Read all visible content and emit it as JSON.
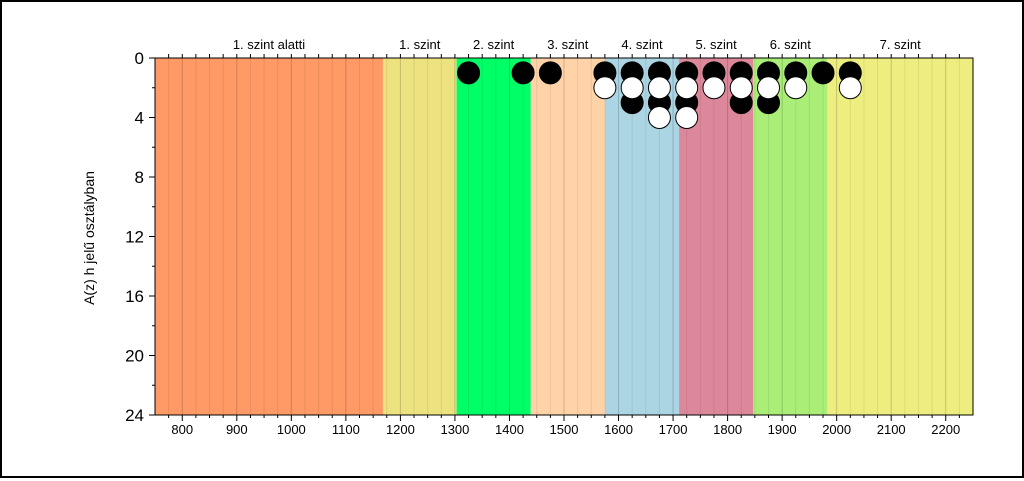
{
  "chart_data": {
    "type": "scatter",
    "ylabel": "A(z) h jelű osztályban",
    "xlim": [
      750,
      2250
    ],
    "ylim": [
      0,
      24
    ],
    "y_inverted": true,
    "x_ticks": [
      800,
      900,
      1000,
      1100,
      1200,
      1300,
      1400,
      1500,
      1600,
      1700,
      1800,
      1900,
      2000,
      2100,
      2200
    ],
    "y_ticks": [
      0,
      4,
      8,
      12,
      16,
      20,
      24
    ],
    "grid": "vertical",
    "bands": [
      {
        "label": "1. szint alatti",
        "from": 750,
        "to": 1168,
        "color": "#FF9966"
      },
      {
        "label": "1. szint",
        "from": 1168,
        "to": 1303,
        "color": "#EDE280"
      },
      {
        "label": "2. szint",
        "from": 1303,
        "to": 1439,
        "color": "#00FF66"
      },
      {
        "label": "3. szint",
        "from": 1439,
        "to": 1575,
        "color": "#FFD2A8"
      },
      {
        "label": "4. szint",
        "from": 1575,
        "to": 1711,
        "color": "#ABD5E3"
      },
      {
        "label": "5. szint",
        "from": 1711,
        "to": 1847,
        "color": "#DC889A"
      },
      {
        "label": "6. szint",
        "from": 1847,
        "to": 1983,
        "color": "#AAEE77"
      },
      {
        "label": "7. szint",
        "from": 1983,
        "to": 2250,
        "color": "#EEEE80"
      }
    ],
    "series": [
      {
        "fill": "#000000",
        "points": [
          {
            "x": 1325,
            "y": 1
          },
          {
            "x": 1425,
            "y": 1
          },
          {
            "x": 1475,
            "y": 1
          },
          {
            "x": 1575,
            "y": 1
          },
          {
            "x": 1625,
            "y": 1
          },
          {
            "x": 1675,
            "y": 1
          },
          {
            "x": 1725,
            "y": 1
          },
          {
            "x": 1775,
            "y": 1
          },
          {
            "x": 1825,
            "y": 1
          },
          {
            "x": 1875,
            "y": 1
          },
          {
            "x": 1925,
            "y": 1
          },
          {
            "x": 1975,
            "y": 1
          },
          {
            "x": 2025,
            "y": 1
          },
          {
            "x": 1625,
            "y": 3
          },
          {
            "x": 1675,
            "y": 3
          },
          {
            "x": 1725,
            "y": 3
          },
          {
            "x": 1825,
            "y": 3
          },
          {
            "x": 1875,
            "y": 3
          }
        ]
      },
      {
        "fill": "#FFFFFF",
        "points": [
          {
            "x": 1575,
            "y": 2
          },
          {
            "x": 1625,
            "y": 2
          },
          {
            "x": 1675,
            "y": 2
          },
          {
            "x": 1725,
            "y": 2
          },
          {
            "x": 1775,
            "y": 2
          },
          {
            "x": 1825,
            "y": 2
          },
          {
            "x": 1875,
            "y": 2
          },
          {
            "x": 1925,
            "y": 2
          },
          {
            "x": 2025,
            "y": 2
          },
          {
            "x": 1675,
            "y": 4
          },
          {
            "x": 1725,
            "y": 4
          }
        ]
      }
    ]
  }
}
